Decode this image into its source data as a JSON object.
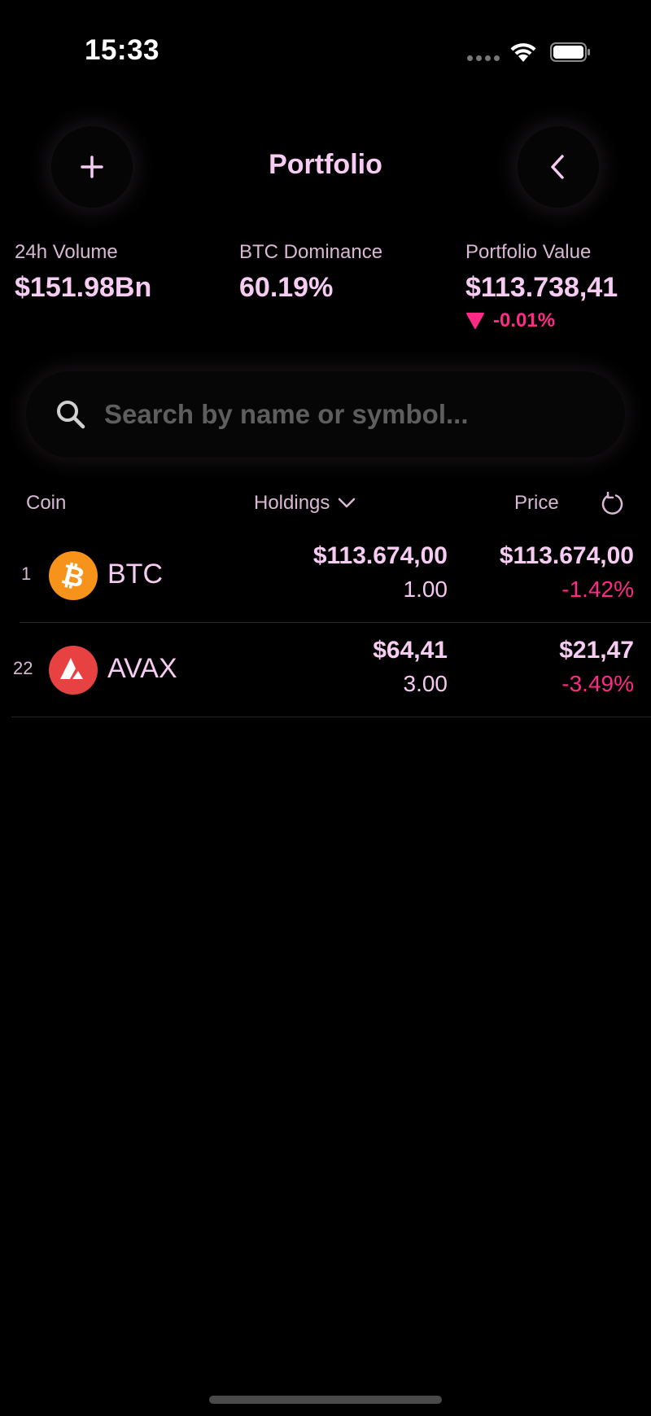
{
  "status_bar": {
    "time": "15:33"
  },
  "header": {
    "title": "Portfolio"
  },
  "stats": [
    {
      "label": "24h Volume",
      "value": "$151.98Bn"
    },
    {
      "label": "BTC Dominance",
      "value": "60.19%"
    },
    {
      "label": "Portfolio Value",
      "value": "$113.738,41",
      "change": "-0.01%"
    }
  ],
  "search": {
    "placeholder": "Search by name or symbol..."
  },
  "table": {
    "columns": {
      "coin": "Coin",
      "holdings": "Holdings",
      "price": "Price"
    },
    "rows": [
      {
        "rank": "1",
        "symbol": "BTC",
        "logo_icon": "bitcoin-icon",
        "logo_color": "#F7931A",
        "holdings_value": "$113.674,00",
        "holdings_amount": "1.00",
        "price": "$113.674,00",
        "change": "-1.42%"
      },
      {
        "rank": "22",
        "symbol": "AVAX",
        "logo_icon": "avalanche-icon",
        "logo_color": "#E84142",
        "holdings_value": "$64,41",
        "holdings_amount": "3.00",
        "price": "$21,47",
        "change": "-3.49%"
      }
    ]
  },
  "colors": {
    "accent": "#F7CCF3",
    "negative": "#FF2A86",
    "background": "#000000"
  }
}
